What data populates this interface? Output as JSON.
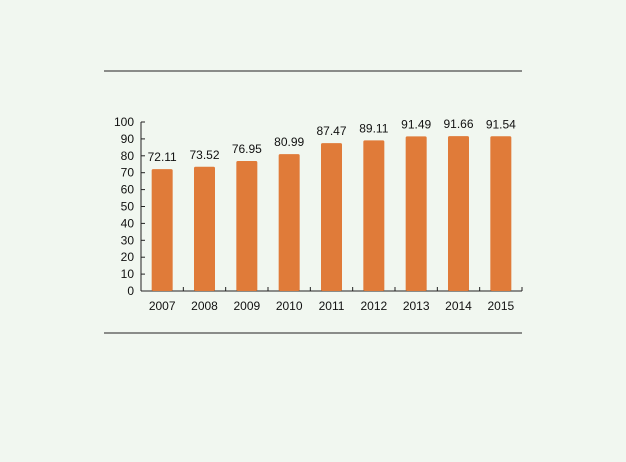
{
  "chart_data": {
    "type": "bar",
    "title": "",
    "xlabel": "",
    "ylabel": "",
    "categories": [
      "2007",
      "2008",
      "2009",
      "2010",
      "2011",
      "2012",
      "2013",
      "2014",
      "2015"
    ],
    "values": [
      72.11,
      73.52,
      76.95,
      80.99,
      87.47,
      89.11,
      91.49,
      91.66,
      91.54
    ],
    "data_labels": [
      "72.11",
      "73.52",
      "76.95",
      "80.99",
      "87.47",
      "89.11",
      "91.49",
      "91.66",
      "91.54"
    ],
    "ylim": [
      0,
      100
    ],
    "yticks": [
      "0",
      "10",
      "20",
      "30",
      "40",
      "50",
      "60",
      "70",
      "80",
      "90",
      "100"
    ],
    "grid": false,
    "legend": "none",
    "bar_color": "#e07b39",
    "background_color": "#f1f7f0"
  }
}
